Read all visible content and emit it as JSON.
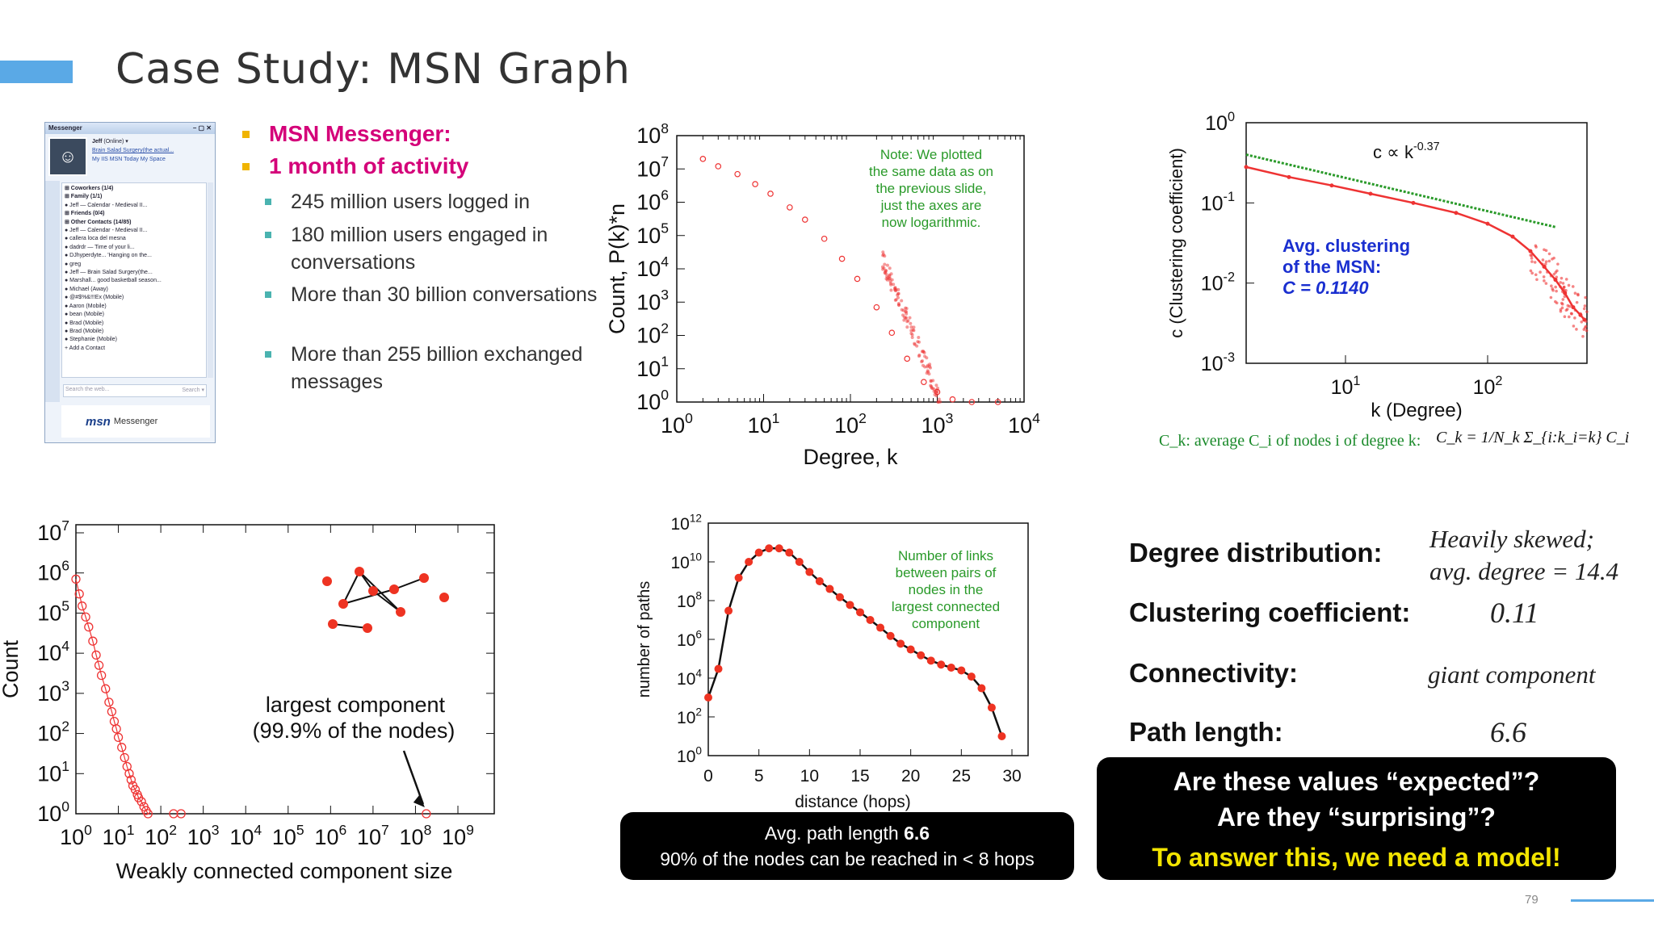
{
  "title": "Case Study: MSN Graph",
  "page_number": "79",
  "messenger": {
    "app_title": "Messenger",
    "user": "Jeff",
    "status": "(Online) ▾",
    "personal_msg": "Brain Salad Surgery(the actual...",
    "links": "My IIS   MSN Today   My Space",
    "groups": [
      "Coworkers (1/4)",
      "Family (1/1)",
      "Friends (0/4)",
      "Other Contacts (14/85)"
    ],
    "contacts": [
      "Jeff — Calendar - Medieval II...",
      "callera loca del mesna",
      "dadrdr — Time of your li...",
      "DJhyperdyte... 'Hanging on the...",
      "greg",
      "Jeff — Brain Salad Surgery(the...",
      "Marshall... good basketball season...",
      "Michael (Away)",
      "@#$%&!!!Ex (Mobile)",
      "Aaron (Mobile)",
      "bean (Mobile)",
      "Brad (Mobile)",
      "Brad (Mobile)",
      "Stephanie (Mobile)"
    ],
    "add_contact": "+ Add a Contact",
    "search_placeholder": "Search the web...",
    "search_label": "Search ▾",
    "logo": "msn",
    "logo_suffix": "Messenger"
  },
  "bullets": {
    "main": [
      "MSN Messenger:",
      "1 month of activity"
    ],
    "sub": [
      "245 million users logged in",
      "180 million users engaged in conversations",
      "More than 30 billion conversations",
      "More than 255 billion exchanged messages"
    ]
  },
  "degree_chart": {
    "ylabel": "Count, P(k)*n",
    "xlabel": "Degree, k",
    "note": [
      "Note: We plotted",
      "the same data as on",
      "the previous slide,",
      "just the axes are",
      "now logarithmic."
    ],
    "x_ticks": [
      "10^0",
      "10^1",
      "10^2",
      "10^3",
      "10^4"
    ],
    "y_ticks": [
      "10^0",
      "10^1",
      "10^2",
      "10^3",
      "10^4",
      "10^5",
      "10^6",
      "10^7",
      "10^8"
    ]
  },
  "clustering_chart": {
    "ylabel": "c (Clustering coefficient)",
    "xlabel": "k (Degree)",
    "fit_label": "c ∝ k^-0.37",
    "avg_label": [
      "Avg. clustering",
      "of the MSN:",
      "C = 0.1140"
    ],
    "x_ticks": [
      "10^1",
      "10^2"
    ],
    "y_ticks": [
      "10^0",
      "10^-1",
      "10^-2",
      "10^-3"
    ],
    "formula_text": "C_k: average C_i of nodes i of degree k:",
    "formula_eq": "C_k = 1/N_k Σ_{i:k_i=k} C_i"
  },
  "component_chart": {
    "ylabel": "Count",
    "xlabel": "Weakly connected component size",
    "annotation": [
      "largest component",
      "(99.9% of the nodes)"
    ],
    "x_ticks": [
      "10^0",
      "10^1",
      "10^2",
      "10^3",
      "10^4",
      "10^5",
      "10^6",
      "10^7",
      "10^8",
      "10^9"
    ],
    "y_ticks": [
      "10^0",
      "10^1",
      "10^2",
      "10^3",
      "10^4",
      "10^5",
      "10^6",
      "10^7"
    ]
  },
  "path_chart": {
    "ylabel": "number of paths",
    "xlabel": "distance (hops)",
    "note": [
      "Number of links",
      "between pairs of",
      "nodes in the",
      "largest connected",
      "component"
    ],
    "x_ticks": [
      "0",
      "5",
      "10",
      "15",
      "20",
      "25",
      "30"
    ],
    "y_ticks": [
      "10^0",
      "10^2",
      "10^4",
      "10^6",
      "10^8",
      "10^10",
      "10^12"
    ]
  },
  "path_box": {
    "line1_prefix": "Avg. path length ",
    "line1_value": "6.6",
    "line2": "90% of the nodes can be reached in < 8 hops"
  },
  "summary": {
    "rows": [
      {
        "label": "Degree distribution:",
        "value_lines": [
          "Heavily skewed;",
          "avg. degree = 14.4"
        ]
      },
      {
        "label": "Clustering coefficient:",
        "value_lines": [
          "0.11"
        ]
      },
      {
        "label": "Connectivity:",
        "value_lines": [
          "giant component"
        ]
      },
      {
        "label": "Path length:",
        "value_lines": [
          "6.6"
        ]
      }
    ],
    "question1": "Are these values “expected”?",
    "question2": "Are they “surprising”?",
    "answer": "To answer this, we need a model!"
  },
  "chart_data": [
    {
      "type": "scatter",
      "id": "degree-distribution",
      "xlabel": "Degree, k",
      "ylabel": "Count, P(k)*n",
      "xscale": "log",
      "yscale": "log",
      "xlim": [
        1,
        10000
      ],
      "ylim": [
        1,
        100000000
      ],
      "note": "Note: We plotted the same data as on the previous slide, just the axes are now logarithmic.",
      "x": [
        2,
        3,
        5,
        8,
        12,
        20,
        30,
        50,
        80,
        120,
        200,
        300,
        450,
        700,
        1000,
        1500,
        2500,
        5000
      ],
      "y": [
        20000000,
        12000000,
        7000000,
        3500000,
        1800000,
        700000,
        300000,
        80000,
        20000,
        5000,
        700,
        120,
        20,
        4,
        2,
        1.2,
        1,
        1
      ]
    },
    {
      "type": "scatter",
      "id": "clustering-coefficient",
      "xlabel": "k (Degree)",
      "ylabel": "c (Clustering coefficient)",
      "xscale": "log",
      "yscale": "log",
      "xlim": [
        2,
        500
      ],
      "ylim": [
        0.001,
        1
      ],
      "fit": "c ∝ k^-0.37",
      "x": [
        2,
        4,
        8,
        15,
        30,
        60,
        100,
        150,
        200,
        250,
        300,
        350,
        400,
        450,
        480
      ],
      "y": [
        0.28,
        0.21,
        0.165,
        0.13,
        0.1,
        0.075,
        0.055,
        0.038,
        0.025,
        0.016,
        0.011,
        0.0075,
        0.005,
        0.004,
        0.0035
      ],
      "fit_x": [
        2,
        300
      ],
      "fit_y": [
        0.4,
        0.05
      ]
    },
    {
      "type": "scatter",
      "id": "component-size",
      "xlabel": "Weakly connected component size",
      "ylabel": "Count",
      "xscale": "log",
      "yscale": "log",
      "xlim": [
        1,
        1000000000
      ],
      "ylim": [
        1,
        10000000
      ],
      "annotation": "largest component (99.9% of the nodes)",
      "x": [
        1,
        1.2,
        1.4,
        1.7,
        2,
        2.5,
        3,
        3.5,
        4,
        5,
        6,
        7,
        8,
        9,
        10,
        12,
        14,
        16,
        18,
        20,
        22,
        25,
        28,
        30,
        35,
        40,
        45,
        50,
        200,
        300,
        180000000
      ],
      "y": [
        700000,
        300000,
        150000,
        80000,
        45000,
        20000,
        9000,
        5000,
        2800,
        1300,
        600,
        350,
        200,
        130,
        80,
        45,
        25,
        15,
        10,
        7,
        5,
        4,
        3,
        2.5,
        2,
        1.5,
        1.2,
        1,
        1,
        1,
        1
      ]
    },
    {
      "type": "line",
      "id": "path-length",
      "xlabel": "distance (hops)",
      "ylabel": "number of paths",
      "yscale": "log",
      "xlim": [
        0,
        30
      ],
      "ylim": [
        1,
        1000000000000
      ],
      "note": "Number of links between pairs of nodes in the largest connected component",
      "x": [
        0,
        1,
        2,
        3,
        4,
        5,
        6,
        7,
        8,
        9,
        10,
        11,
        12,
        13,
        14,
        15,
        16,
        17,
        18,
        19,
        20,
        21,
        22,
        23,
        24,
        25,
        26,
        27,
        28,
        29
      ],
      "y": [
        1000,
        30000,
        30000000,
        1500000000,
        10000000000,
        30000000000,
        50000000000,
        50000000000,
        30000000000,
        10000000000,
        3000000000,
        1000000000,
        400000000,
        150000000,
        60000000,
        25000000,
        10000000,
        4000000,
        1500000,
        600000,
        300000,
        150000,
        80000,
        50000,
        35000,
        25000,
        12000,
        3000,
        300,
        10
      ]
    }
  ]
}
